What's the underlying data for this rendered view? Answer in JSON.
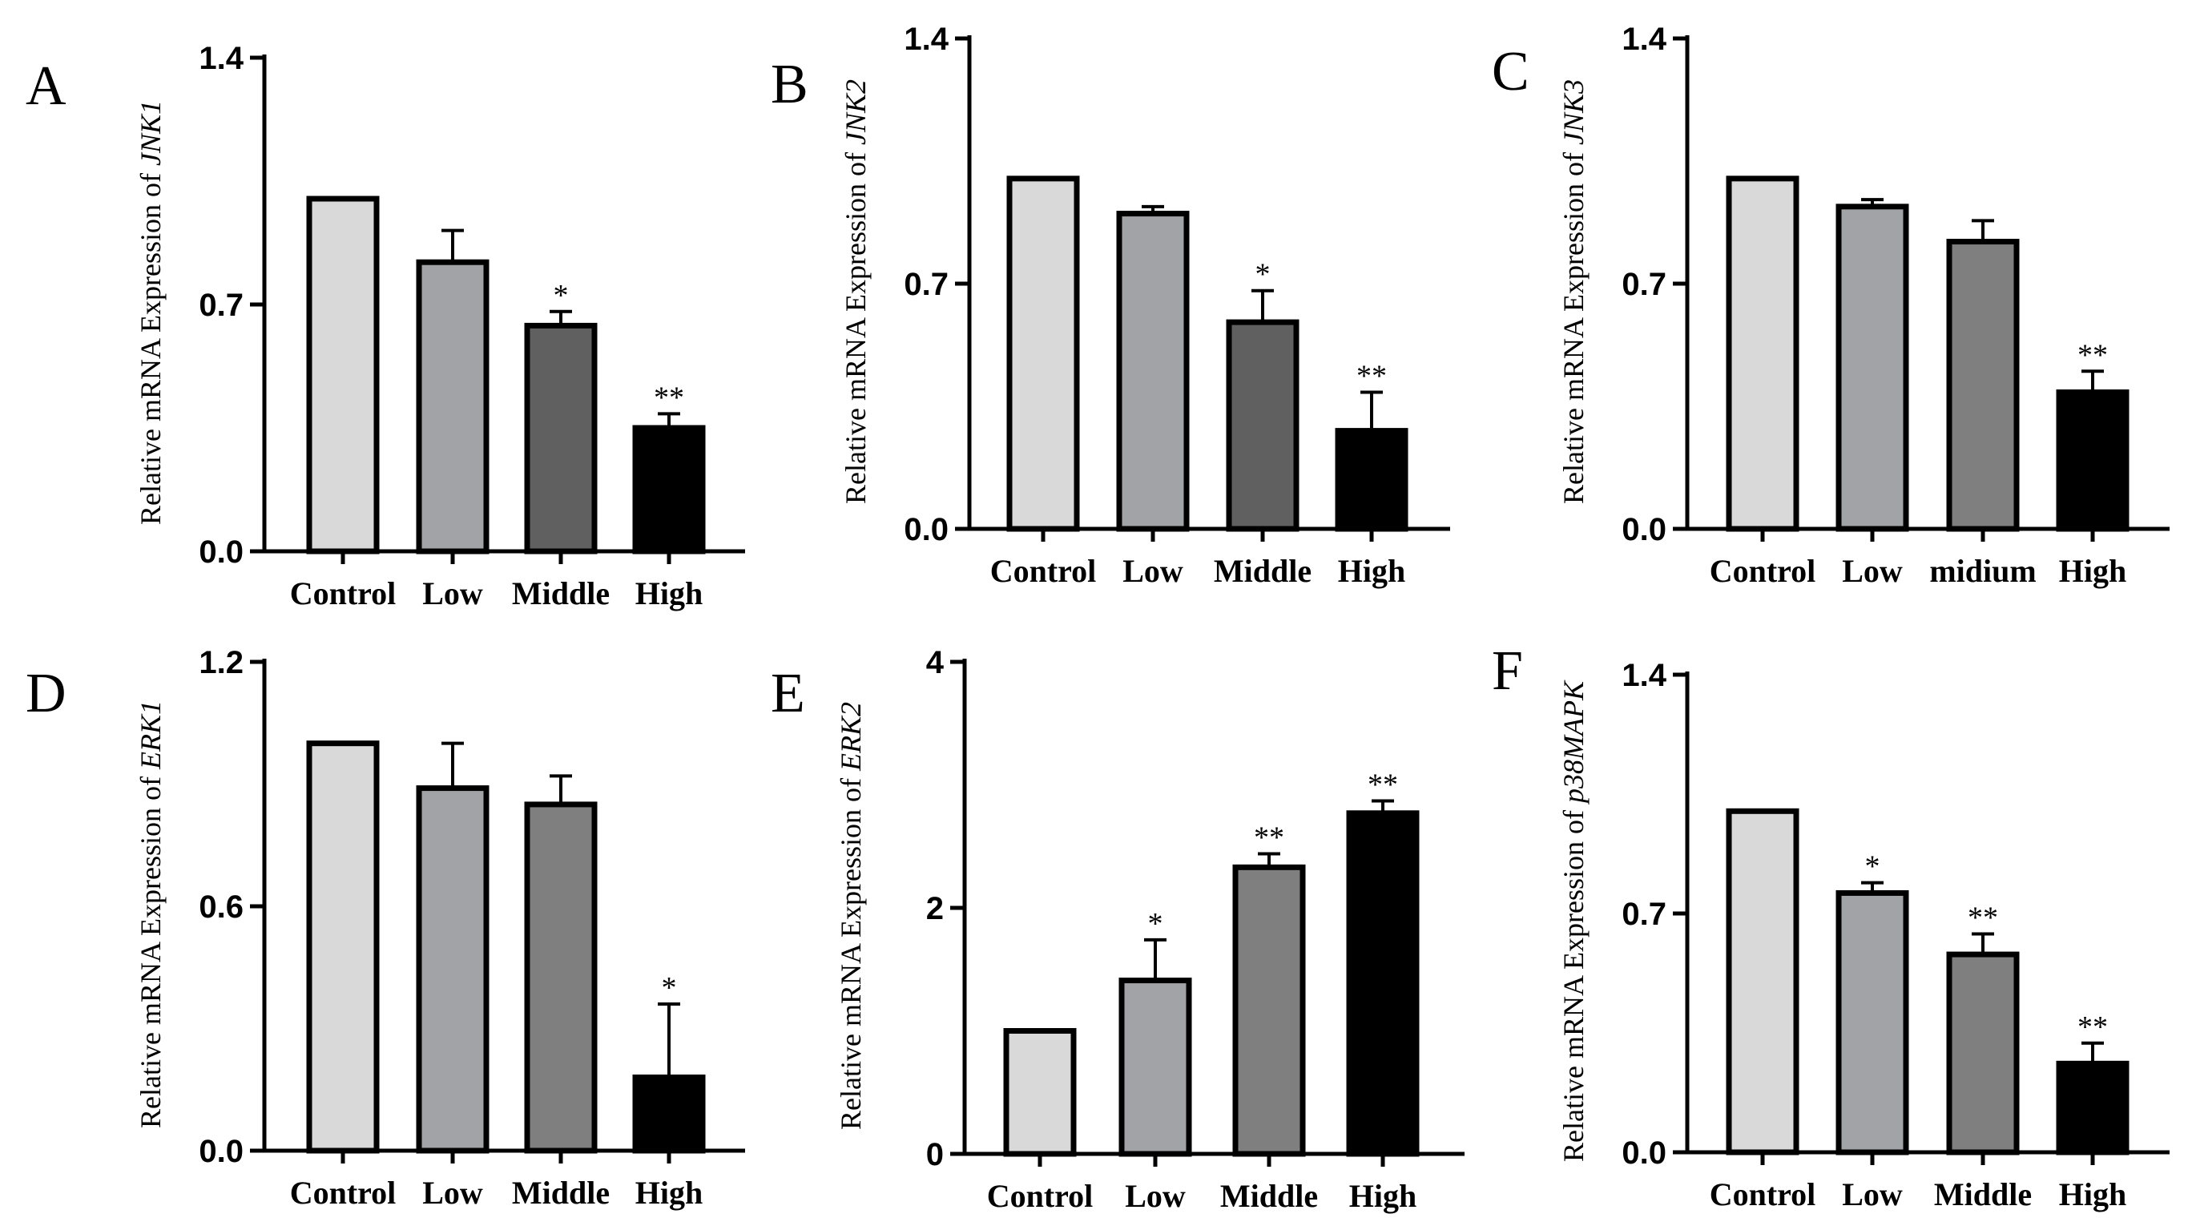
{
  "figure": {
    "description_colors": {
      "control": "#d9d9d9",
      "low": "#a2a3a6",
      "dark1": "#606060",
      "dark2": "#7f7f7f",
      "high": "#000000"
    }
  },
  "chart_data": [
    {
      "type": "bar",
      "panel_label": "A",
      "ylabel_prefix": "Relative mRNA Expression of",
      "gene": "JNK1",
      "categories": [
        "Control",
        "Low",
        "Middle",
        "High"
      ],
      "values": [
        1.0,
        0.82,
        0.64,
        0.35
      ],
      "errors": [
        0,
        0.09,
        0.04,
        0.04
      ],
      "significance": [
        "",
        "",
        "*",
        "**"
      ],
      "colors": [
        "#d9d9d9",
        "#a2a3a6",
        "#606060",
        "#000000"
      ],
      "ylim": [
        0,
        1.4
      ],
      "yticks": [
        "0.0",
        "0.7",
        "1.4"
      ],
      "ytick_values": [
        0,
        0.7,
        1.4
      ]
    },
    {
      "type": "bar",
      "panel_label": "B",
      "ylabel_prefix": "Relative mRNA Expression of",
      "gene": "JNK2",
      "categories": [
        "Control",
        "Low",
        "Middle",
        "High"
      ],
      "values": [
        1.0,
        0.9,
        0.59,
        0.28
      ],
      "errors": [
        0,
        0.02,
        0.09,
        0.11
      ],
      "significance": [
        "",
        "",
        "*",
        "**"
      ],
      "colors": [
        "#d9d9d9",
        "#a2a3a6",
        "#606060",
        "#000000"
      ],
      "ylim": [
        0,
        1.4
      ],
      "yticks": [
        "0.0",
        "0.7",
        "1.4"
      ],
      "ytick_values": [
        0,
        0.7,
        1.4
      ]
    },
    {
      "type": "bar",
      "panel_label": "C",
      "ylabel_prefix": "Relative mRNA Expression of",
      "gene": "JNK3",
      "categories": [
        "Control",
        "Low",
        "midium",
        "High"
      ],
      "values": [
        1.0,
        0.92,
        0.82,
        0.39
      ],
      "errors": [
        0,
        0.02,
        0.06,
        0.06
      ],
      "significance": [
        "",
        "",
        "",
        "**"
      ],
      "colors": [
        "#d9d9d9",
        "#a2a3a6",
        "#7f7f7f",
        "#000000"
      ],
      "ylim": [
        0,
        1.4
      ],
      "yticks": [
        "0.0",
        "0.7",
        "1.4"
      ],
      "ytick_values": [
        0,
        0.7,
        1.4
      ]
    },
    {
      "type": "bar",
      "panel_label": "D",
      "ylabel_prefix": "Relative mRNA Expression of",
      "gene": "ERK1",
      "categories": [
        "Control",
        "Low",
        "Middle",
        "High"
      ],
      "values": [
        1.0,
        0.89,
        0.85,
        0.18
      ],
      "errors": [
        0,
        0.11,
        0.07,
        0.18
      ],
      "significance": [
        "",
        "",
        "",
        "*"
      ],
      "colors": [
        "#d9d9d9",
        "#a2a3a6",
        "#7f7f7f",
        "#000000"
      ],
      "ylim": [
        0,
        1.2
      ],
      "yticks": [
        "0.0",
        "0.6",
        "1.2"
      ],
      "ytick_values": [
        0,
        0.6,
        1.2
      ]
    },
    {
      "type": "bar",
      "panel_label": "E",
      "ylabel_prefix": "Relative mRNA Expression of",
      "gene": "ERK2",
      "categories": [
        "Control",
        "Low",
        "Middle",
        "High"
      ],
      "values": [
        1.0,
        1.41,
        2.33,
        2.77
      ],
      "errors": [
        0,
        0.33,
        0.11,
        0.1
      ],
      "significance": [
        "",
        "*",
        "**",
        "**"
      ],
      "colors": [
        "#d9d9d9",
        "#a2a3a6",
        "#7f7f7f",
        "#000000"
      ],
      "ylim": [
        0,
        4
      ],
      "yticks": [
        "0",
        "2",
        "4"
      ],
      "ytick_values": [
        0,
        2,
        4
      ]
    },
    {
      "type": "bar",
      "panel_label": "F",
      "ylabel_prefix": "Relative mRNA Expression of",
      "gene": "p38MAPK",
      "categories": [
        "Control",
        "Low",
        "Middle",
        "High"
      ],
      "values": [
        1.0,
        0.76,
        0.58,
        0.26
      ],
      "errors": [
        0,
        0.03,
        0.06,
        0.06
      ],
      "significance": [
        "",
        "*",
        "**",
        "**"
      ],
      "colors": [
        "#d9d9d9",
        "#a2a3a6",
        "#7f7f7f",
        "#000000"
      ],
      "ylim": [
        0,
        1.4
      ],
      "yticks": [
        "0.0",
        "0.7",
        "1.4"
      ],
      "ytick_values": [
        0,
        0.7,
        1.4
      ]
    }
  ]
}
